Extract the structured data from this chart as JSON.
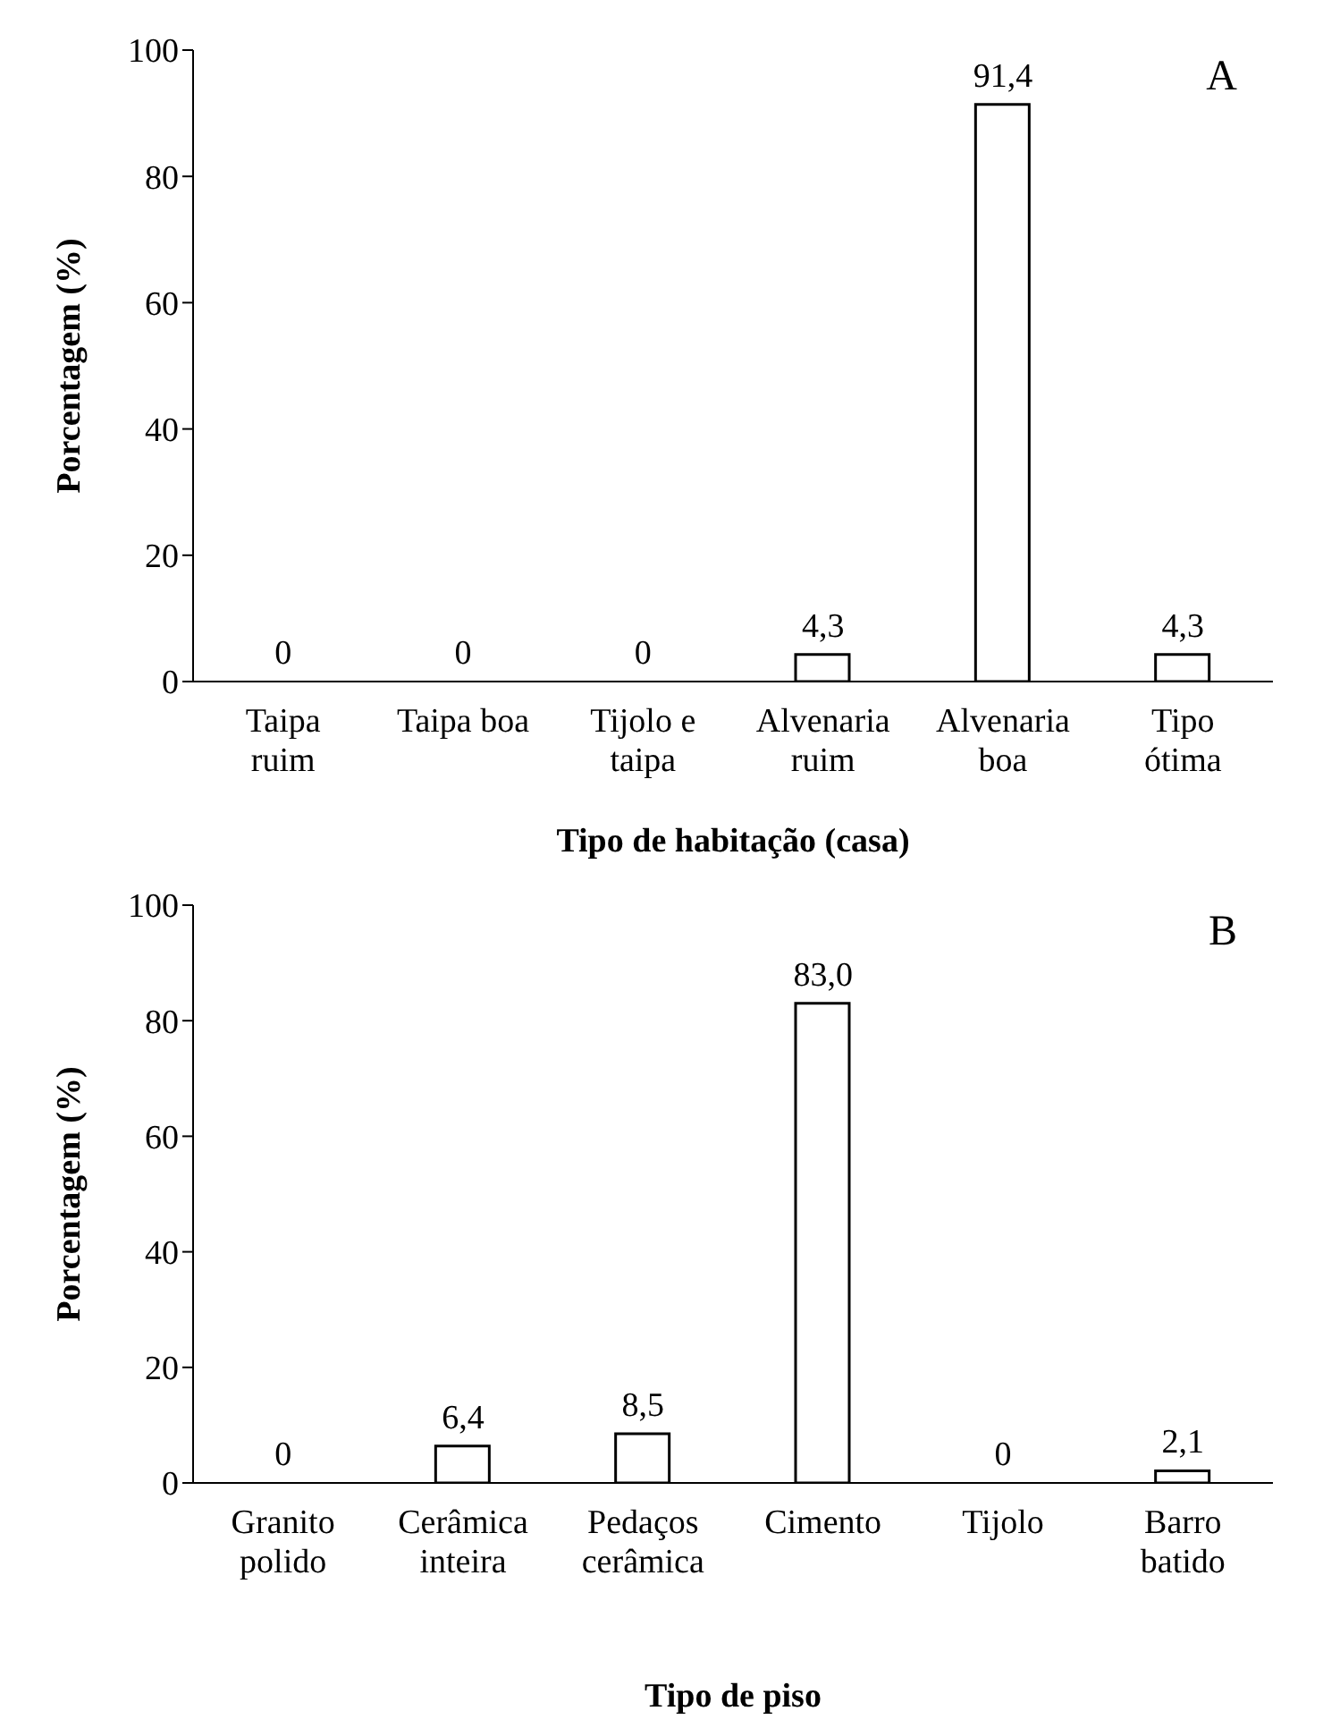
{
  "chart_data": [
    {
      "type": "bar",
      "xlabel": "Tipo de habitação (casa)",
      "ylabel": "Porcentagem (%)",
      "categories": [
        "Taipa ruim",
        "Taipa boa",
        "Tijolo e taipa",
        "Alvenaria ruim",
        "Alvenaria boa",
        "Tipo ótima"
      ],
      "values": [
        0,
        0,
        0,
        4.3,
        91.4,
        4.3
      ],
      "value_labels": [
        "0",
        "0",
        "0",
        "4,3",
        "91,4",
        "4,3"
      ],
      "color": "#ffffff",
      "ylim": [
        0,
        100
      ],
      "yticks": [
        0,
        20,
        40,
        60,
        80,
        100
      ],
      "grid": false,
      "legend": false,
      "annotations": [
        "A"
      ]
    },
    {
      "type": "bar",
      "xlabel": "Tipo de piso",
      "ylabel": "Porcentagem (%)",
      "categories": [
        "Granito polido",
        "Cerâmica inteira",
        "Pedaços cerâmica",
        "Cimento",
        "Tijolo",
        "Barro batido"
      ],
      "values": [
        0,
        6.4,
        8.5,
        83.0,
        0,
        2.1
      ],
      "value_labels": [
        "0",
        "6,4",
        "8,5",
        "83,0",
        "0",
        "2,1"
      ],
      "color": "#ffffff",
      "ylim": [
        0,
        100
      ],
      "yticks": [
        0,
        20,
        40,
        60,
        80,
        100
      ],
      "grid": false,
      "legend": false,
      "annotations": [
        "B"
      ]
    }
  ]
}
